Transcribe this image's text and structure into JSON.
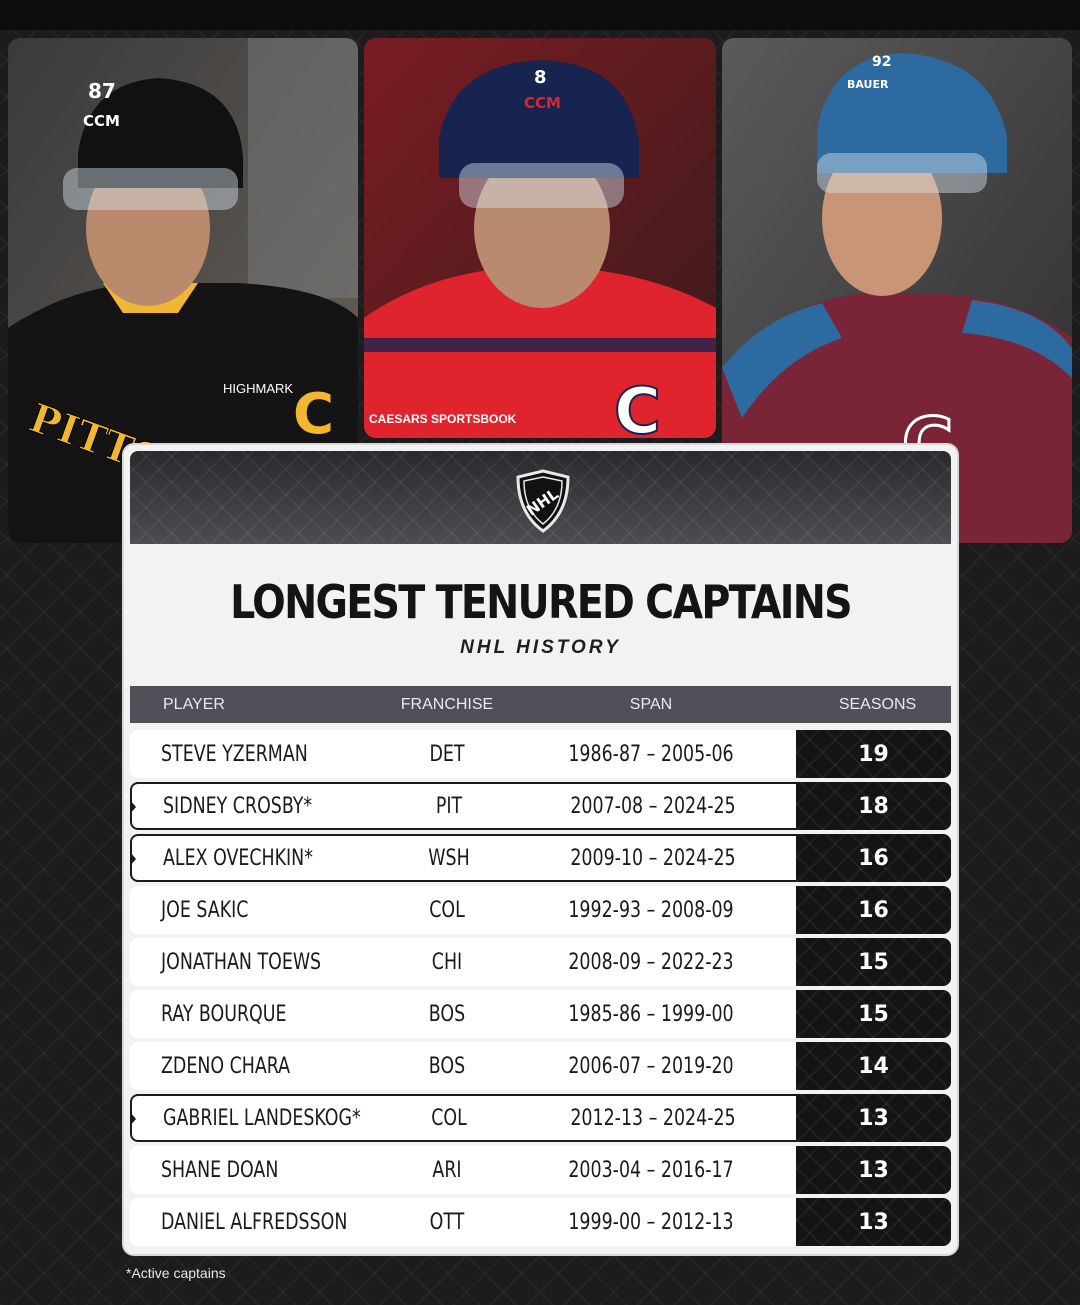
{
  "header": {
    "title": "LONGEST TENURED CAPTAINS",
    "subtitle": "NHL HISTORY",
    "logo": "nhl-shield-icon"
  },
  "photos": [
    {
      "jersey_text": "PITTS",
      "sponsor": "HIGHMARK",
      "captain_mark": "C",
      "helmet_brand": "CCM",
      "number": "87",
      "colors": {
        "jersey": "#141414",
        "accent": "#f2b632"
      }
    },
    {
      "jersey_text": "",
      "sponsor": "CAESARS SPORTSBOOK",
      "captain_mark": "C",
      "helmet_brand": "CCM",
      "number": "8",
      "colors": {
        "jersey": "#e0242e",
        "accent": "#16244f"
      }
    },
    {
      "jersey_text": "",
      "sponsor": "",
      "captain_mark": "C",
      "helmet_brand": "BAUER",
      "number": "92",
      "colors": {
        "jersey": "#7a2537",
        "accent": "#2c6aa0"
      }
    }
  ],
  "table": {
    "columns": [
      "PLAYER",
      "FRANCHISE",
      "SPAN",
      "SEASONS"
    ],
    "rows": [
      {
        "player": "STEVE YZERMAN",
        "franchise": "DET",
        "span": "1986-87 – 2005-06",
        "seasons": "19",
        "active": false
      },
      {
        "player": "SIDNEY CROSBY*",
        "franchise": "PIT",
        "span": "2007-08 – 2024-25",
        "seasons": "18",
        "active": true
      },
      {
        "player": "ALEX OVECHKIN*",
        "franchise": "WSH",
        "span": "2009-10 – 2024-25",
        "seasons": "16",
        "active": true
      },
      {
        "player": "JOE SAKIC",
        "franchise": "COL",
        "span": "1992-93 – 2008-09",
        "seasons": "16",
        "active": false
      },
      {
        "player": "JONATHAN TOEWS",
        "franchise": "CHI",
        "span": "2008-09 – 2022-23",
        "seasons": "15",
        "active": false
      },
      {
        "player": "RAY BOURQUE",
        "franchise": "BOS",
        "span": "1985-86 – 1999-00",
        "seasons": "15",
        "active": false
      },
      {
        "player": "ZDENO CHARA",
        "franchise": "BOS",
        "span": "2006-07 – 2019-20",
        "seasons": "14",
        "active": false
      },
      {
        "player": "GABRIEL LANDESKOG*",
        "franchise": "COL",
        "span": "2012-13 – 2024-25",
        "seasons": "13",
        "active": true
      },
      {
        "player": "SHANE DOAN",
        "franchise": "ARI",
        "span": "2003-04 – 2016-17",
        "seasons": "13",
        "active": false
      },
      {
        "player": "DANIEL ALFREDSSON",
        "franchise": "OTT",
        "span": "1999-00 – 2012-13",
        "seasons": "13",
        "active": false
      }
    ]
  },
  "footnote": "*Active captains"
}
